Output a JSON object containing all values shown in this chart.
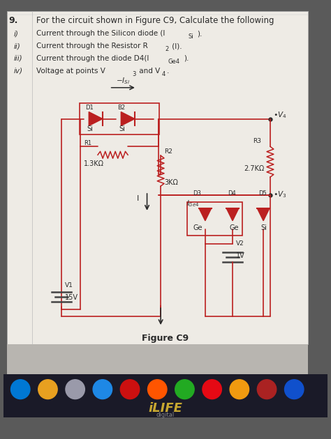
{
  "bg_outer": "#5a5a5a",
  "bg_screen": "#d8d4cf",
  "paper_color": "#e8e4de",
  "line_color": "#2a2a2a",
  "circuit_color": "#bb2020",
  "dark_circuit": "#8b1010",
  "taskbar_color": "#1a1a28",
  "taskbar_strip": "#2a2a3a",
  "brand_text": "iLIFE",
  "brand_sub": "digital",
  "figure_label": "Figure C9",
  "icon_colors": [
    "#0078d4",
    "#e8a020",
    "#9a9aaa",
    "#1e88e5",
    "#cc1010",
    "#ff5500",
    "#22aa22",
    "#e50914",
    "#f09a10",
    "#aa2222",
    "#1050cc"
  ]
}
